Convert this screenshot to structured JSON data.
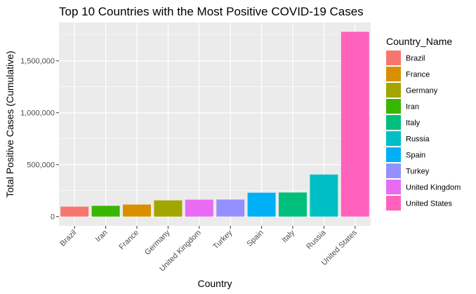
{
  "chart_data": {
    "type": "bar",
    "title": "Top 10 Countries with the Most Positive COVID-19 Cases",
    "xlabel": "Country",
    "ylabel": "Total Positive Cases (Cumulative)",
    "categories": [
      "Brazil",
      "Iran",
      "France",
      "Germany",
      "United Kingdom",
      "Turkey",
      "Spain",
      "Italy",
      "Russia",
      "United States"
    ],
    "values": [
      96000,
      104000,
      116000,
      156000,
      163000,
      164000,
      230000,
      232000,
      405000,
      1780000
    ],
    "colors": [
      "#F8766D",
      "#39B600",
      "#D89000",
      "#A3A500",
      "#E76BF3",
      "#9590FF",
      "#00B0F6",
      "#00BF7D",
      "#00BFC4",
      "#FF62BC"
    ],
    "ylim": [
      -90000,
      1870000
    ],
    "yticks": [
      0,
      500000,
      1000000,
      1500000
    ],
    "ytick_labels": [
      "0",
      "500,000",
      "1,000,000",
      "1,500,000"
    ],
    "grid": true,
    "panel_background": "#EBEBEB",
    "gridline_color": "#FFFFFF",
    "legend": {
      "title": "Country_Name",
      "position": "right",
      "entries": [
        {
          "label": "Brazil",
          "color": "#F8766D"
        },
        {
          "label": "France",
          "color": "#D89000"
        },
        {
          "label": "Germany",
          "color": "#A3A500"
        },
        {
          "label": "Iran",
          "color": "#39B600"
        },
        {
          "label": "Italy",
          "color": "#00BF7D"
        },
        {
          "label": "Russia",
          "color": "#00BFC4"
        },
        {
          "label": "Spain",
          "color": "#00B0F6"
        },
        {
          "label": "Turkey",
          "color": "#9590FF"
        },
        {
          "label": "United Kingdom",
          "color": "#E76BF3"
        },
        {
          "label": "United States",
          "color": "#FF62BC"
        }
      ]
    }
  }
}
